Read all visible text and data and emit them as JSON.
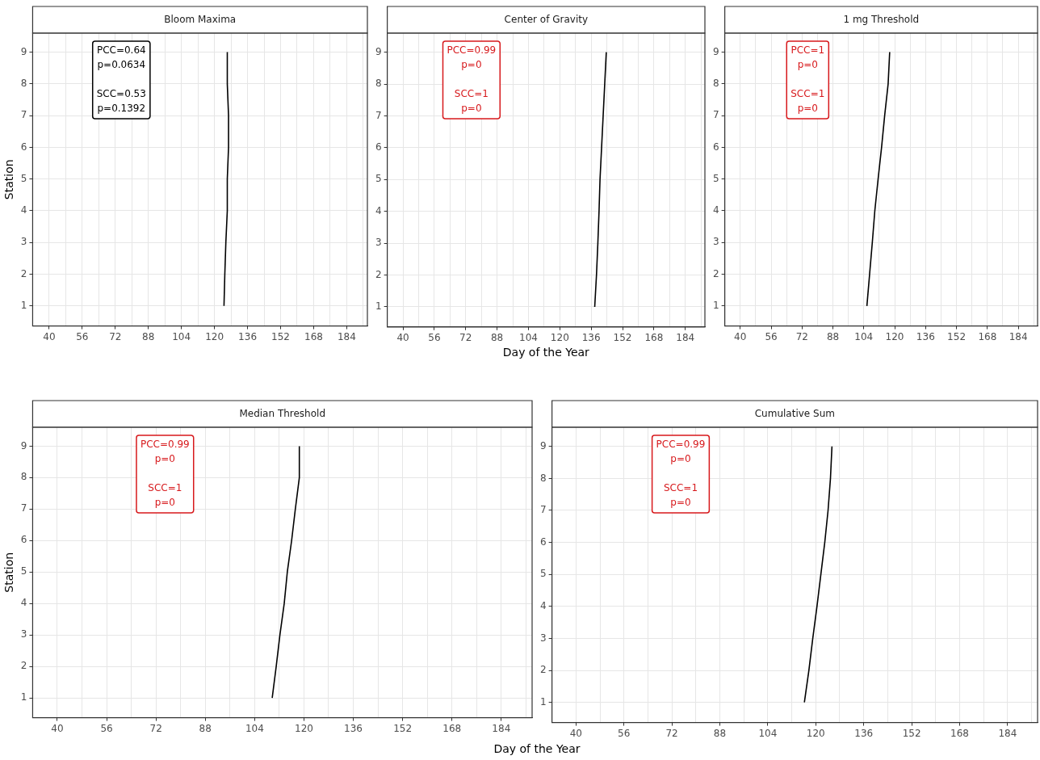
{
  "chart_data": [
    {
      "type": "line",
      "title": "Bloom Maxima",
      "ylabel": "Station",
      "annotations": [
        "PCC=0.64",
        "p=0.0634",
        "SCC=0.53",
        "p=0.1392"
      ],
      "series": [
        {
          "color": "#000000",
          "x": [
            124.6,
            125.0,
            125.5,
            126.2,
            126.2,
            126.8,
            126.8,
            126.2,
            126.2
          ],
          "values": [
            1,
            2,
            3,
            4,
            5,
            6,
            7,
            8,
            9
          ]
        }
      ],
      "xlim": [
        32,
        194
      ],
      "xticks": [
        40,
        {
          "value": 48,
          "label": null
        },
        56,
        {
          "value": 64,
          "label": null
        },
        72,
        {
          "value": 80,
          "label": null
        },
        88,
        {
          "value": 96,
          "label": null
        },
        104,
        {
          "value": 112,
          "label": null
        },
        120,
        {
          "value": 128,
          "label": null
        },
        136,
        {
          "value": 144,
          "label": null
        },
        152,
        {
          "value": 160,
          "label": null
        },
        168,
        {
          "value": 176,
          "label": null
        },
        184,
        {
          "value": 192,
          "label": null
        }
      ],
      "ylim": [
        0.37,
        9.6
      ],
      "yticks": [
        1,
        2,
        3,
        4,
        5,
        6,
        7,
        8,
        9
      ],
      "grid": true,
      "legend": false,
      "marker": "none",
      "line_style": "solid"
    },
    {
      "type": "line",
      "title": "Center of Gravity",
      "xlabel": "Day of the Year",
      "annotations": [
        "PCC=0.99",
        "p=0",
        "SCC=1",
        "p=0"
      ],
      "series": [
        {
          "color": "#000000",
          "x": [
            137.8,
            138.7,
            139.4,
            140.0,
            140.5,
            141.3,
            142.1,
            142.9,
            143.7
          ],
          "values": [
            1,
            2,
            3,
            4,
            5,
            6,
            7,
            8,
            9
          ]
        }
      ],
      "xlim": [
        32,
        194
      ],
      "xticks": [
        40,
        {
          "value": 48,
          "label": null
        },
        56,
        {
          "value": 64,
          "label": null
        },
        72,
        {
          "value": 80,
          "label": null
        },
        88,
        {
          "value": 96,
          "label": null
        },
        104,
        {
          "value": 112,
          "label": null
        },
        120,
        {
          "value": 128,
          "label": null
        },
        136,
        {
          "value": 144,
          "label": null
        },
        152,
        {
          "value": 160,
          "label": null
        },
        168,
        {
          "value": 176,
          "label": null
        },
        184,
        {
          "value": 192,
          "label": null
        }
      ],
      "ylim": [
        0.37,
        9.6
      ],
      "yticks": [
        1,
        2,
        3,
        4,
        5,
        6,
        7,
        8,
        9
      ],
      "grid": true,
      "legend": false,
      "marker": "none",
      "line_style": "solid"
    },
    {
      "type": "line",
      "title": "1 mg Threshold",
      "annotations": [
        "PCC=1",
        "p=0",
        "SCC=1",
        "p=0"
      ],
      "series": [
        {
          "color": "#000000",
          "x": [
            105.6,
            107.0,
            108.4,
            109.7,
            111.4,
            113.2,
            114.8,
            116.6,
            117.4
          ],
          "values": [
            1,
            2,
            3,
            4,
            5,
            6,
            7,
            8,
            9
          ]
        }
      ],
      "xlim": [
        32,
        194
      ],
      "xticks": [
        40,
        {
          "value": 48,
          "label": null
        },
        56,
        {
          "value": 64,
          "label": null
        },
        72,
        {
          "value": 80,
          "label": null
        },
        88,
        {
          "value": 96,
          "label": null
        },
        104,
        {
          "value": 112,
          "label": null
        },
        120,
        {
          "value": 128,
          "label": null
        },
        136,
        {
          "value": 144,
          "label": null
        },
        152,
        {
          "value": 160,
          "label": null
        },
        168,
        {
          "value": 176,
          "label": null
        },
        184,
        {
          "value": 192,
          "label": null
        }
      ],
      "ylim": [
        0.37,
        9.6
      ],
      "yticks": [
        1,
        2,
        3,
        4,
        5,
        6,
        7,
        8,
        9
      ],
      "grid": true,
      "legend": false,
      "marker": "none",
      "line_style": "solid"
    },
    {
      "type": "line",
      "title": "Median Threshold",
      "ylabel": "Station",
      "xlabel": "Day of the Year",
      "annotations": [
        "PCC=0.99",
        "p=0",
        "SCC=1",
        "p=0"
      ],
      "series": [
        {
          "color": "#000000",
          "x": [
            109.7,
            111.0,
            112.2,
            113.6,
            114.6,
            116.0,
            117.2,
            118.5,
            118.5
          ],
          "values": [
            1,
            2,
            3,
            4,
            5,
            6,
            7,
            8,
            9
          ]
        }
      ],
      "xlim": [
        32,
        194
      ],
      "xticks": [
        40,
        {
          "value": 48,
          "label": null
        },
        56,
        {
          "value": 64,
          "label": null
        },
        72,
        {
          "value": 80,
          "label": null
        },
        88,
        {
          "value": 96,
          "label": null
        },
        104,
        {
          "value": 112,
          "label": null
        },
        120,
        {
          "value": 128,
          "label": null
        },
        136,
        {
          "value": 144,
          "label": null
        },
        152,
        {
          "value": 160,
          "label": null
        },
        168,
        {
          "value": 176,
          "label": null
        },
        184,
        {
          "value": 192,
          "label": null
        }
      ],
      "ylim": [
        0.37,
        9.6
      ],
      "yticks": [
        1,
        2,
        3,
        4,
        5,
        6,
        7,
        8,
        9
      ],
      "grid": true,
      "legend": false,
      "marker": "none",
      "line_style": "solid"
    },
    {
      "type": "line",
      "title": "Cumulative Sum",
      "annotations": [
        "PCC=0.99",
        "p=0",
        "SCC=1",
        "p=0"
      ],
      "series": [
        {
          "color": "#000000",
          "x": [
            116.2,
            117.7,
            119.0,
            120.4,
            121.7,
            123.0,
            124.1,
            124.9,
            125.4
          ],
          "values": [
            1,
            2,
            3,
            4,
            5,
            6,
            7,
            8,
            9
          ]
        }
      ],
      "xlim": [
        32,
        194
      ],
      "xticks": [
        40,
        {
          "value": 48,
          "label": null
        },
        56,
        {
          "value": 64,
          "label": null
        },
        72,
        {
          "value": 80,
          "label": null
        },
        88,
        {
          "value": 96,
          "label": null
        },
        104,
        {
          "value": 112,
          "label": null
        },
        120,
        {
          "value": 128,
          "label": null
        },
        136,
        {
          "value": 144,
          "label": null
        },
        152,
        {
          "value": 160,
          "label": null
        },
        168,
        {
          "value": 176,
          "label": null
        },
        184,
        {
          "value": 192,
          "label": null
        }
      ],
      "ylim": [
        0.37,
        9.6
      ],
      "yticks": [
        1,
        2,
        3,
        4,
        5,
        6,
        7,
        8,
        9
      ],
      "grid": true,
      "legend": false,
      "marker": "none",
      "line_style": "solid"
    }
  ]
}
